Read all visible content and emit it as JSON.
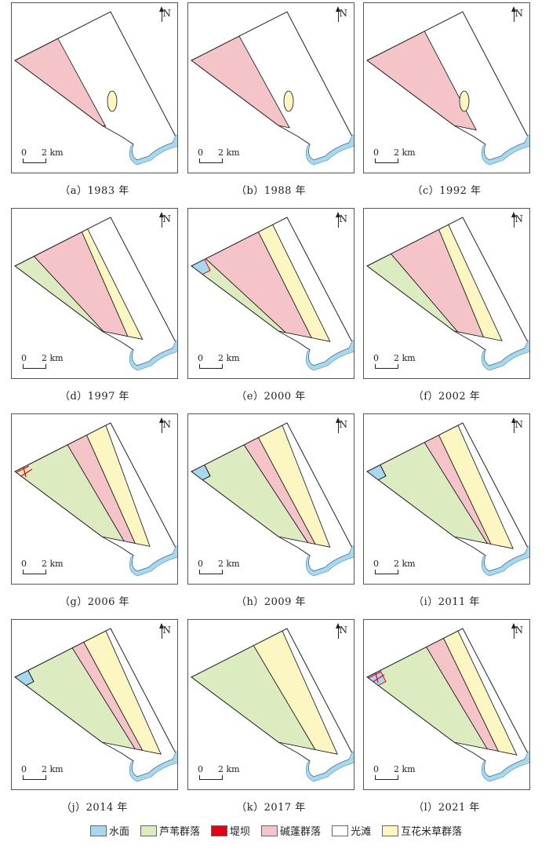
{
  "panels": [
    {
      "caption": "（a）1983 年"
    },
    {
      "caption": "（b）1988 年"
    },
    {
      "caption": "（c）1992 年"
    },
    {
      "caption": "（d）1997 年"
    },
    {
      "caption": "（e）2000 年"
    },
    {
      "caption": "（f）2002 年"
    },
    {
      "caption": "（g）2006 年"
    },
    {
      "caption": "（h）2009 年"
    },
    {
      "caption": "（i）2011 年"
    },
    {
      "caption": "（j）2014 年"
    },
    {
      "caption": "（k）2017 年"
    },
    {
      "caption": "（l）2021 年"
    }
  ],
  "north_label": "N",
  "scale": {
    "zero": "0",
    "distance": "2 km"
  },
  "legend": [
    {
      "label": "水面",
      "color": "#a8d8f0"
    },
    {
      "label": "芦苇群落",
      "color": "#dcebc0"
    },
    {
      "label": "堤坝",
      "color": "#e60012"
    },
    {
      "label": "碱蓬群落",
      "color": "#f5c4c8"
    },
    {
      "label": "光滩",
      "color": "#ffffff"
    },
    {
      "label": "互花米草群落",
      "color": "#fcf7c2"
    }
  ]
}
